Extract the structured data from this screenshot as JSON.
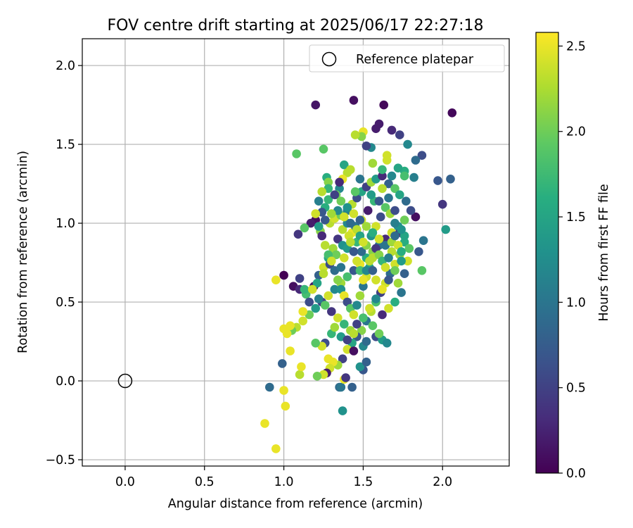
{
  "chart_data": {
    "type": "scatter",
    "title": "FOV centre drift starting at 2025/06/17 22:27:18",
    "xlabel": "Angular distance from reference (arcmin)",
    "ylabel": "Rotation from reference (arcmin)",
    "xlim": [
      -0.27,
      2.42
    ],
    "ylim": [
      -0.54,
      2.17
    ],
    "xticks": [
      "0.0",
      "0.5",
      "1.0",
      "1.5",
      "2.0"
    ],
    "xtick_values": [
      0.0,
      0.5,
      1.0,
      1.5,
      2.0
    ],
    "yticks": [
      "−0.5",
      "0.0",
      "0.5",
      "1.0",
      "1.5",
      "2.0"
    ],
    "ytick_values": [
      -0.5,
      0.0,
      0.5,
      1.0,
      1.5,
      2.0
    ],
    "grid": true,
    "legend": {
      "placement": "top-right",
      "label": "Reference platepar"
    },
    "reference_point": {
      "x": 0.0,
      "y": 0.0
    },
    "colorbar": {
      "label": "Hours from first FF file",
      "range": [
        0.0,
        2.58
      ],
      "ticks": [
        "0.0",
        "0.5",
        "1.0",
        "1.5",
        "2.0",
        "2.5"
      ],
      "tick_values": [
        0.0,
        0.5,
        1.0,
        1.5,
        2.0,
        2.5
      ],
      "colormap": "viridis"
    },
    "points": [
      [
        2.06,
        1.7,
        0.05
      ],
      [
        1.44,
        1.78,
        0.1
      ],
      [
        1.2,
        1.75,
        0.15
      ],
      [
        1.63,
        1.75,
        0.05
      ],
      [
        1.6,
        1.63,
        0.2
      ],
      [
        1.68,
        1.59,
        0.3
      ],
      [
        1.73,
        1.56,
        0.5
      ],
      [
        1.78,
        1.5,
        1.2
      ],
      [
        1.87,
        1.43,
        0.6
      ],
      [
        1.83,
        1.4,
        0.9
      ],
      [
        1.97,
        1.27,
        0.7
      ],
      [
        2.0,
        1.12,
        0.4
      ],
      [
        2.05,
        1.28,
        0.8
      ],
      [
        2.02,
        0.96,
        1.4
      ],
      [
        1.88,
        0.89,
        1.0
      ],
      [
        1.85,
        0.82,
        0.7
      ],
      [
        1.87,
        0.7,
        1.9
      ],
      [
        1.83,
        1.04,
        0.1
      ],
      [
        1.82,
        1.29,
        1.1
      ],
      [
        1.76,
        1.33,
        1.6
      ],
      [
        1.76,
        1.3,
        1.8
      ],
      [
        1.72,
        1.35,
        1.5
      ],
      [
        1.55,
        1.48,
        1.2
      ],
      [
        1.52,
        1.49,
        0.5
      ],
      [
        1.5,
        1.58,
        2.5
      ],
      [
        1.49,
        1.55,
        2.1
      ],
      [
        1.45,
        1.56,
        2.3
      ],
      [
        1.56,
        1.38,
        2.2
      ],
      [
        1.65,
        1.43,
        2.4
      ],
      [
        1.65,
        1.4,
        2.4
      ],
      [
        1.58,
        1.6,
        0.2
      ],
      [
        1.25,
        1.47,
        1.9
      ],
      [
        1.08,
        1.44,
        1.9
      ],
      [
        1.27,
        1.29,
        1.6
      ],
      [
        1.28,
        1.26,
        2.1
      ],
      [
        1.38,
        1.37,
        1.5
      ],
      [
        1.4,
        1.32,
        2.3
      ],
      [
        1.37,
        1.28,
        2.5
      ],
      [
        1.35,
        1.22,
        1.2
      ],
      [
        1.33,
        1.18,
        2.0
      ],
      [
        1.28,
        1.15,
        1.7
      ],
      [
        1.26,
        1.1,
        1.6
      ],
      [
        1.24,
        1.07,
        0.7
      ],
      [
        1.2,
        1.02,
        0.1
      ],
      [
        1.17,
        1.0,
        0.2
      ],
      [
        1.13,
        0.97,
        1.9
      ],
      [
        1.09,
        0.93,
        0.4
      ],
      [
        1.23,
        0.95,
        2.1
      ],
      [
        1.29,
        1.0,
        2.3
      ],
      [
        1.32,
        1.03,
        2.4
      ],
      [
        1.36,
        1.05,
        2.0
      ],
      [
        1.4,
        1.08,
        1.1
      ],
      [
        1.43,
        1.12,
        2.3
      ],
      [
        1.46,
        1.16,
        0.6
      ],
      [
        1.49,
        1.2,
        1.5
      ],
      [
        1.52,
        1.23,
        0.5
      ],
      [
        1.55,
        1.26,
        2.2
      ],
      [
        1.58,
        1.28,
        1.4
      ],
      [
        1.62,
        1.3,
        0.3
      ],
      [
        1.66,
        1.25,
        0.8
      ],
      [
        1.7,
        1.22,
        1.9
      ],
      [
        1.73,
        1.18,
        1.5
      ],
      [
        1.77,
        1.14,
        0.9
      ],
      [
        1.8,
        1.08,
        0.6
      ],
      [
        1.76,
        1.02,
        2.0
      ],
      [
        1.72,
        0.98,
        1.3
      ],
      [
        1.68,
        0.94,
        2.4
      ],
      [
        1.64,
        0.9,
        0.3
      ],
      [
        1.6,
        0.86,
        1.0
      ],
      [
        1.56,
        0.82,
        2.1
      ],
      [
        1.52,
        0.78,
        1.6
      ],
      [
        1.48,
        0.74,
        2.5
      ],
      [
        1.44,
        0.7,
        0.7
      ],
      [
        1.4,
        0.66,
        1.8
      ],
      [
        1.36,
        0.62,
        2.2
      ],
      [
        1.32,
        0.58,
        1.2
      ],
      [
        1.28,
        0.54,
        2.4
      ],
      [
        1.24,
        0.5,
        0.5
      ],
      [
        1.2,
        0.46,
        1.4
      ],
      [
        1.16,
        0.42,
        2.0
      ],
      [
        1.12,
        0.38,
        2.4
      ],
      [
        1.08,
        0.34,
        2.3
      ],
      [
        1.05,
        0.32,
        2.0
      ],
      [
        1.02,
        0.3,
        2.5
      ],
      [
        1.0,
        0.33,
        2.5
      ],
      [
        1.04,
        0.35,
        2.5
      ],
      [
        1.04,
        0.19,
        2.5
      ],
      [
        0.95,
        0.64,
        2.5
      ],
      [
        1.0,
        0.67,
        0.0
      ],
      [
        1.06,
        0.6,
        0.1
      ],
      [
        1.1,
        0.58,
        0.3
      ],
      [
        1.14,
        0.55,
        1.8
      ],
      [
        1.1,
        0.65,
        0.5
      ],
      [
        1.13,
        0.58,
        1.7
      ],
      [
        1.12,
        0.44,
        2.5
      ],
      [
        1.16,
        0.5,
        0.6
      ],
      [
        1.19,
        0.6,
        0.2
      ],
      [
        1.22,
        0.67,
        0.8
      ],
      [
        1.25,
        0.72,
        2.4
      ],
      [
        1.28,
        0.78,
        1.5
      ],
      [
        1.31,
        0.84,
        2.2
      ],
      [
        1.34,
        0.9,
        0.4
      ],
      [
        1.37,
        0.96,
        2.3
      ],
      [
        1.4,
        1.0,
        1.2
      ],
      [
        1.43,
        0.94,
        2.5
      ],
      [
        1.46,
        0.88,
        1.7
      ],
      [
        1.49,
        0.82,
        0.9
      ],
      [
        1.52,
        0.86,
        2.1
      ],
      [
        1.55,
        0.92,
        1.3
      ],
      [
        1.58,
        0.98,
        2.4
      ],
      [
        1.61,
        1.04,
        0.6
      ],
      [
        1.64,
        1.1,
        1.9
      ],
      [
        1.67,
        1.06,
        2.2
      ],
      [
        1.7,
        1.0,
        1.1
      ],
      [
        1.73,
        0.94,
        0.4
      ],
      [
        1.76,
        0.88,
        1.6
      ],
      [
        1.73,
        0.8,
        2.2
      ],
      [
        1.7,
        0.74,
        2.4
      ],
      [
        1.67,
        0.68,
        0.9
      ],
      [
        1.64,
        0.62,
        2.4
      ],
      [
        1.61,
        0.56,
        0.5
      ],
      [
        1.58,
        0.5,
        1.8
      ],
      [
        1.55,
        0.44,
        2.3
      ],
      [
        1.52,
        0.38,
        1.0
      ],
      [
        1.49,
        0.32,
        2.1
      ],
      [
        1.46,
        0.28,
        0.7
      ],
      [
        1.43,
        0.24,
        1.5
      ],
      [
        1.4,
        0.2,
        2.4
      ],
      [
        1.37,
        0.14,
        0.5
      ],
      [
        1.34,
        0.1,
        2.2
      ],
      [
        1.31,
        0.12,
        2.5
      ],
      [
        1.28,
        0.14,
        2.5
      ],
      [
        1.29,
        0.08,
        2.4
      ],
      [
        1.27,
        0.05,
        0.2
      ],
      [
        1.25,
        0.04,
        2.4
      ],
      [
        1.21,
        0.03,
        2.0
      ],
      [
        1.1,
        0.04,
        2.3
      ],
      [
        1.11,
        0.09,
        2.5
      ],
      [
        0.99,
        0.11,
        0.8
      ],
      [
        0.91,
        -0.04,
        0.9
      ],
      [
        1.0,
        -0.06,
        2.5
      ],
      [
        1.01,
        -0.16,
        2.5
      ],
      [
        0.88,
        -0.27,
        2.5
      ],
      [
        0.95,
        -0.43,
        2.5
      ],
      [
        1.37,
        -0.19,
        1.3
      ],
      [
        1.35,
        -0.04,
        0.9
      ],
      [
        1.36,
        -0.04,
        1.0
      ],
      [
        1.43,
        -0.04,
        0.8
      ],
      [
        1.38,
        0.01,
        2.5
      ],
      [
        1.39,
        0.02,
        0.4
      ],
      [
        1.5,
        0.07,
        0.7
      ],
      [
        1.48,
        0.09,
        1.3
      ],
      [
        1.52,
        0.12,
        0.8
      ],
      [
        1.44,
        0.19,
        0.1
      ],
      [
        1.5,
        0.22,
        1.2
      ],
      [
        1.52,
        0.25,
        0.9
      ],
      [
        1.58,
        0.28,
        0.6
      ],
      [
        1.62,
        0.26,
        1.4
      ],
      [
        1.65,
        0.24,
        1.2
      ],
      [
        1.6,
        0.3,
        2.0
      ],
      [
        1.56,
        0.35,
        1.9
      ],
      [
        1.62,
        0.42,
        0.3
      ],
      [
        1.66,
        0.46,
        2.4
      ],
      [
        1.7,
        0.5,
        1.6
      ],
      [
        1.74,
        0.56,
        1.0
      ],
      [
        1.72,
        0.62,
        2.2
      ],
      [
        1.76,
        0.68,
        0.8
      ],
      [
        1.78,
        0.76,
        2.4
      ],
      [
        1.79,
        0.84,
        1.9
      ],
      [
        1.76,
        0.92,
        1.5
      ],
      [
        1.74,
        0.96,
        1.3
      ],
      [
        1.7,
        1.08,
        0.6
      ],
      [
        1.66,
        1.16,
        1.0
      ],
      [
        1.62,
        1.22,
        2.3
      ],
      [
        1.57,
        1.14,
        1.7
      ],
      [
        1.53,
        1.08,
        0.2
      ],
      [
        1.49,
        1.02,
        2.4
      ],
      [
        1.45,
        0.98,
        1.0
      ],
      [
        1.41,
        0.92,
        2.4
      ],
      [
        1.37,
        0.86,
        1.3
      ],
      [
        1.33,
        0.8,
        2.0
      ],
      [
        1.29,
        0.74,
        0.6
      ],
      [
        1.25,
        0.68,
        2.3
      ],
      [
        1.21,
        0.62,
        1.5
      ],
      [
        1.18,
        0.58,
        2.4
      ],
      [
        1.22,
        0.52,
        1.1
      ],
      [
        1.26,
        0.48,
        1.9
      ],
      [
        1.3,
        0.44,
        0.4
      ],
      [
        1.34,
        0.4,
        2.4
      ],
      [
        1.38,
        0.36,
        1.7
      ],
      [
        1.42,
        0.32,
        2.2
      ],
      [
        1.46,
        0.36,
        0.5
      ],
      [
        1.5,
        0.4,
        1.8
      ],
      [
        1.54,
        0.46,
        2.4
      ],
      [
        1.58,
        0.52,
        1.2
      ],
      [
        1.62,
        0.58,
        2.5
      ],
      [
        1.66,
        0.64,
        0.7
      ],
      [
        1.7,
        0.7,
        2.0
      ],
      [
        1.74,
        0.76,
        1.4
      ],
      [
        1.68,
        0.82,
        2.3
      ],
      [
        1.64,
        0.86,
        1.0
      ],
      [
        1.6,
        0.9,
        2.4
      ],
      [
        1.56,
        0.94,
        1.6
      ],
      [
        1.52,
        0.98,
        2.2
      ],
      [
        1.48,
        1.02,
        0.8
      ],
      [
        1.44,
        1.06,
        2.4
      ],
      [
        1.4,
        1.1,
        1.3
      ],
      [
        1.36,
        1.14,
        2.0
      ],
      [
        1.32,
        1.18,
        0.5
      ],
      [
        1.28,
        1.22,
        1.7
      ],
      [
        1.24,
        1.2,
        2.3
      ],
      [
        1.22,
        1.14,
        1.1
      ],
      [
        1.2,
        1.06,
        2.4
      ],
      [
        1.22,
        0.98,
        1.4
      ],
      [
        1.24,
        0.92,
        0.3
      ],
      [
        1.26,
        0.86,
        2.3
      ],
      [
        1.28,
        0.8,
        1.8
      ],
      [
        1.3,
        0.76,
        2.4
      ],
      [
        1.32,
        0.7,
        0.9
      ],
      [
        1.34,
        0.64,
        2.1
      ],
      [
        1.36,
        0.58,
        1.3
      ],
      [
        1.38,
        0.54,
        2.5
      ],
      [
        1.4,
        0.5,
        0.6
      ],
      [
        1.42,
        0.46,
        1.9
      ],
      [
        1.44,
        0.42,
        2.4
      ],
      [
        1.46,
        0.48,
        1.2
      ],
      [
        1.48,
        0.54,
        2.2
      ],
      [
        1.5,
        0.6,
        1.0
      ],
      [
        1.52,
        0.66,
        2.4
      ],
      [
        1.54,
        0.72,
        1.5
      ],
      [
        1.56,
        0.78,
        2.3
      ],
      [
        1.58,
        0.84,
        0.4
      ],
      [
        1.6,
        0.8,
        2.1
      ],
      [
        1.62,
        0.76,
        1.7
      ],
      [
        1.64,
        0.72,
        2.4
      ],
      [
        1.66,
        0.78,
        1.1
      ],
      [
        1.68,
        0.88,
        2.2
      ],
      [
        1.7,
        0.92,
        0.9
      ],
      [
        1.72,
        0.86,
        2.4
      ],
      [
        1.74,
        0.82,
        1.6
      ],
      [
        1.36,
        0.72,
        1.0
      ],
      [
        1.38,
        0.78,
        2.4
      ],
      [
        1.4,
        0.84,
        1.4
      ],
      [
        1.42,
        0.88,
        2.3
      ],
      [
        1.44,
        0.82,
        0.7
      ],
      [
        1.46,
        0.76,
        2.4
      ],
      [
        1.48,
        0.7,
        1.8
      ],
      [
        1.5,
        0.64,
        2.5
      ],
      [
        1.52,
        0.7,
        1.2
      ],
      [
        1.54,
        0.76,
        2.3
      ],
      [
        1.56,
        0.7,
        0.8
      ],
      [
        1.58,
        0.64,
        2.4
      ],
      [
        1.46,
        0.96,
        2.3
      ],
      [
        1.48,
        0.92,
        1.5
      ],
      [
        1.5,
        0.88,
        2.4
      ],
      [
        1.42,
        1.0,
        0.9
      ],
      [
        1.38,
        1.04,
        2.4
      ],
      [
        1.34,
        1.08,
        1.2
      ],
      [
        1.3,
        1.06,
        2.2
      ],
      [
        1.26,
        1.02,
        0.7
      ],
      [
        1.45,
        1.2,
        1.9
      ],
      [
        1.55,
        1.18,
        1.4
      ],
      [
        1.6,
        1.14,
        0.7
      ],
      [
        1.35,
        1.26,
        0.3
      ],
      [
        1.48,
        1.28,
        1.0
      ],
      [
        1.62,
        1.34,
        1.7
      ],
      [
        1.68,
        1.3,
        1.2
      ],
      [
        1.42,
        1.34,
        2.3
      ],
      [
        1.3,
        0.3,
        1.7
      ],
      [
        1.26,
        0.24,
        0.6
      ],
      [
        1.24,
        0.22,
        2.4
      ],
      [
        1.2,
        0.24,
        1.9
      ],
      [
        1.32,
        0.34,
        2.2
      ],
      [
        1.36,
        0.28,
        1.4
      ],
      [
        1.4,
        0.26,
        0.5
      ],
      [
        1.44,
        0.3,
        2.3
      ]
    ]
  }
}
